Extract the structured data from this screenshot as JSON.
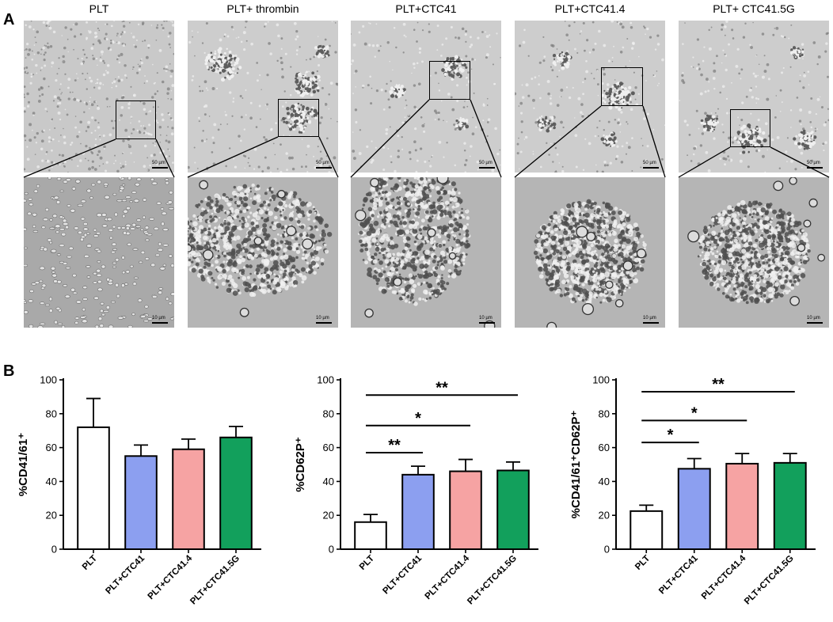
{
  "figure": {
    "panel_a_label": "A",
    "panel_b_label": "B",
    "columns": [
      {
        "title": "PLT",
        "scale_top": "50 µm",
        "scale_bottom": "10 µm",
        "texture": "dispersed"
      },
      {
        "title": "PLT+ thrombin",
        "scale_top": "50 µm",
        "scale_bottom": "10 µm",
        "texture": "aggregate"
      },
      {
        "title": "PLT+CTC41",
        "scale_top": "50 µm",
        "scale_bottom": "10 µm",
        "texture": "aggregate"
      },
      {
        "title": "PLT+CTC41.4",
        "scale_top": "50 µm",
        "scale_bottom": "10 µm",
        "texture": "aggregate"
      },
      {
        "title": "PLT+ CTC41.5G",
        "scale_top": "50 µm",
        "scale_bottom": "10 µm",
        "texture": "aggregate"
      }
    ]
  },
  "chart_data": [
    {
      "type": "bar",
      "ylabel": "%CD41/61⁺",
      "categories": [
        "PLT",
        "PLT+CTC41",
        "PLT+CTC41.4",
        "PLT+CTC41.5G"
      ],
      "values": [
        72,
        55,
        59,
        66
      ],
      "errors": [
        17,
        6.5,
        6,
        6.5
      ],
      "colors": [
        "#ffffff",
        "#8c9ff0",
        "#f6a3a3",
        "#12a05c"
      ],
      "ylim": [
        0,
        100
      ],
      "yticks": [
        0,
        20,
        40,
        60,
        80,
        100
      ],
      "significance": []
    },
    {
      "type": "bar",
      "ylabel": "%CD62P⁺",
      "categories": [
        "PLT",
        "PLT+CTC41",
        "PLT+CTC41.4",
        "PLT+CTC41.5G"
      ],
      "values": [
        16,
        44,
        46,
        46.5
      ],
      "errors": [
        4.5,
        5,
        7,
        5
      ],
      "colors": [
        "#ffffff",
        "#8c9ff0",
        "#f6a3a3",
        "#12a05c"
      ],
      "ylim": [
        0,
        100
      ],
      "yticks": [
        0,
        20,
        40,
        60,
        80,
        100
      ],
      "significance": [
        {
          "from": 0,
          "to": 1,
          "label": "**",
          "y": 57
        },
        {
          "from": 0,
          "to": 2,
          "label": "*",
          "y": 73
        },
        {
          "from": 0,
          "to": 3,
          "label": "**",
          "y": 91
        }
      ]
    },
    {
      "type": "bar",
      "ylabel": "%CD41/61⁺CD62P⁺",
      "categories": [
        "PLT",
        "PLT+CTC41",
        "PLT+CTC41.4",
        "PLT+CTC41.5G"
      ],
      "values": [
        22.5,
        47.5,
        50.5,
        51
      ],
      "errors": [
        3.5,
        6,
        6,
        5.5
      ],
      "colors": [
        "#ffffff",
        "#8c9ff0",
        "#f6a3a3",
        "#12a05c"
      ],
      "ylim": [
        0,
        100
      ],
      "yticks": [
        0,
        20,
        40,
        60,
        80,
        100
      ],
      "significance": [
        {
          "from": 0,
          "to": 1,
          "label": "*",
          "y": 63
        },
        {
          "from": 0,
          "to": 2,
          "label": "*",
          "y": 76
        },
        {
          "from": 0,
          "to": 3,
          "label": "**",
          "y": 93
        }
      ]
    }
  ]
}
